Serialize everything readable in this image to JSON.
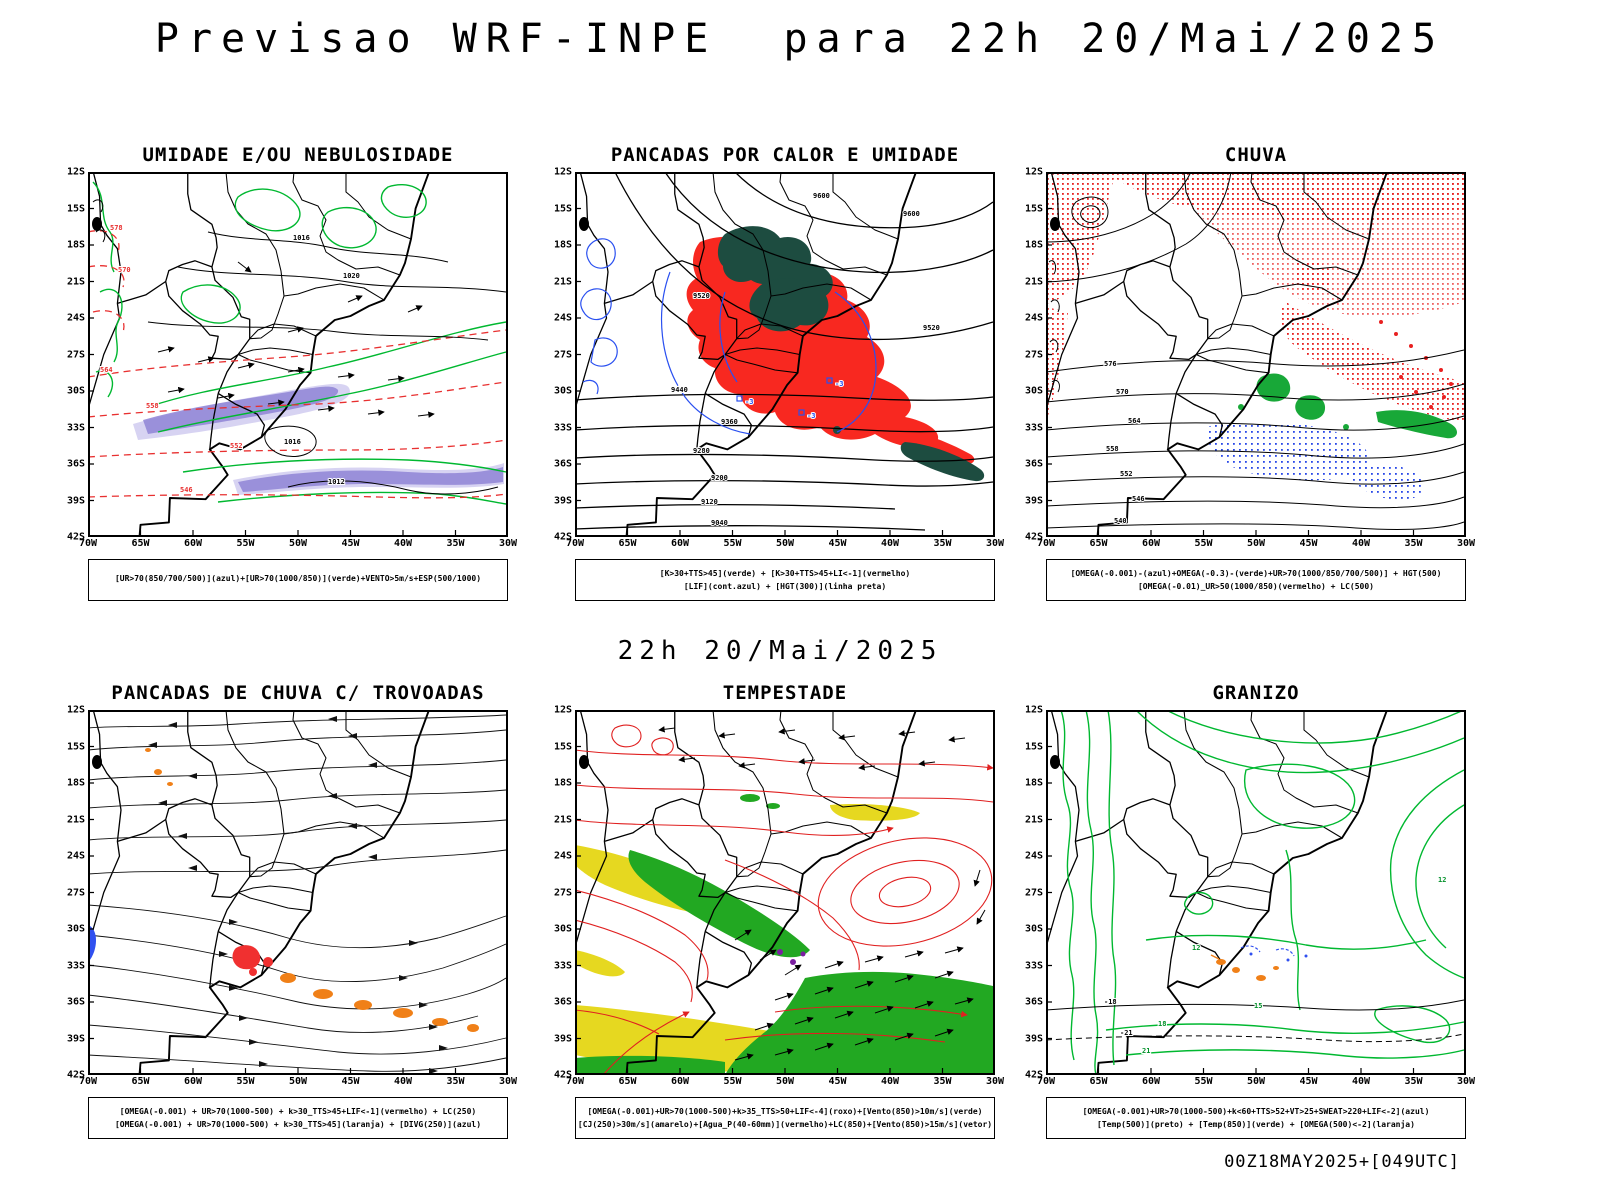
{
  "header": {
    "title": "Previsao WRF-INPE  para 22h 20/Mai/2025"
  },
  "mid_label": "22h 20/Mai/2025",
  "footer": "00Z18MAY2025+[049UTC]",
  "axes": {
    "y": [
      "12S",
      "15S",
      "18S",
      "21S",
      "24S",
      "27S",
      "30S",
      "33S",
      "36S",
      "39S",
      "42S"
    ],
    "x": [
      "70W",
      "65W",
      "60W",
      "55W",
      "50W",
      "45W",
      "40W",
      "35W",
      "30W"
    ]
  },
  "panels": [
    {
      "title": "UMIDADE E/OU NEBULOSIDADE",
      "caption": [
        "[UR>70(850/700/500)](azul)+[UR>70(1000/850)](verde)+VENTO>5m/s+ESP(500/1000)"
      ]
    },
    {
      "title": "PANCADAS POR CALOR E UMIDADE",
      "caption": [
        "[K>30+TTS>45](verde) + [K>30+TTS>45+LI<-1](vermelho)",
        "[LIF](cont.azul) + [HGT(300)](linha preta)"
      ]
    },
    {
      "title": "CHUVA",
      "caption": [
        "[OMEGA(-0.001)-(azul)+OMEGA(-0.3)-(verde)+UR>70(1000/850/700/500)] + HGT(500)",
        "[OMEGA(-0.01)_UR>50(1000/850)(vermelho) + LC(500)"
      ]
    },
    {
      "title": "PANCADAS DE CHUVA C/ TROVOADAS",
      "caption": [
        "[OMEGA(-0.001) + UR>70(1000-500) + k>30_TTS>45+LIF<-1](vermelho) + LC(250)",
        "[OMEGA(-0.001) + UR>70(1000-500) + k>30_TTS>45](laranja) + [DIVG(250)](azul)"
      ]
    },
    {
      "title": "TEMPESTADE",
      "caption": [
        "[OMEGA(-0.001)+UR>70(1000-500)+k>35_TTS>50+LIF<-4](roxo)+[Vento(850)>10m/s](verde)",
        "[CJ(250)>30m/s](amarelo)+[Agua_P(40-60mm)](vermelho)+LC(850)+[Vento(850)>15m/s](vetor)"
      ]
    },
    {
      "title": "GRANIZO",
      "caption": [
        "[OMEGA(-0.001)+UR>70(1000-500)+k<60+TTS>52+VT>25+SWEAT>220+LIF<-2](azul)",
        "[Temp(500)](preto) + [Temp(850)](verde) + [OMEGA(500)<-2](laranja)"
      ]
    }
  ],
  "contour_labels": {
    "p1": [
      "578",
      "570",
      "564",
      "558",
      "552",
      "546",
      "1016",
      "1020",
      "1016",
      "1012"
    ],
    "p2": [
      "9600",
      "9600",
      "9520",
      "9520",
      "9440",
      "9360",
      "9280",
      "9200",
      "9120",
      "9040",
      "-3",
      "-3",
      "-3"
    ],
    "p3": [
      "576",
      "570",
      "564",
      "558",
      "552",
      "546",
      "540"
    ],
    "p6": [
      "12",
      "15",
      "18",
      "21",
      "12",
      "-18",
      "-21"
    ]
  },
  "colors": {
    "green_contour": "#00b830",
    "red_contour": "#e83030",
    "blue_contour": "#2a50f0",
    "red_fill": "#f82820",
    "teal_fill": "#1d4c40",
    "purple_shade": "#8f84d6",
    "orange_fill": "#f08018",
    "yellow_fill": "#e6d820",
    "green_fill": "#22a822"
  }
}
